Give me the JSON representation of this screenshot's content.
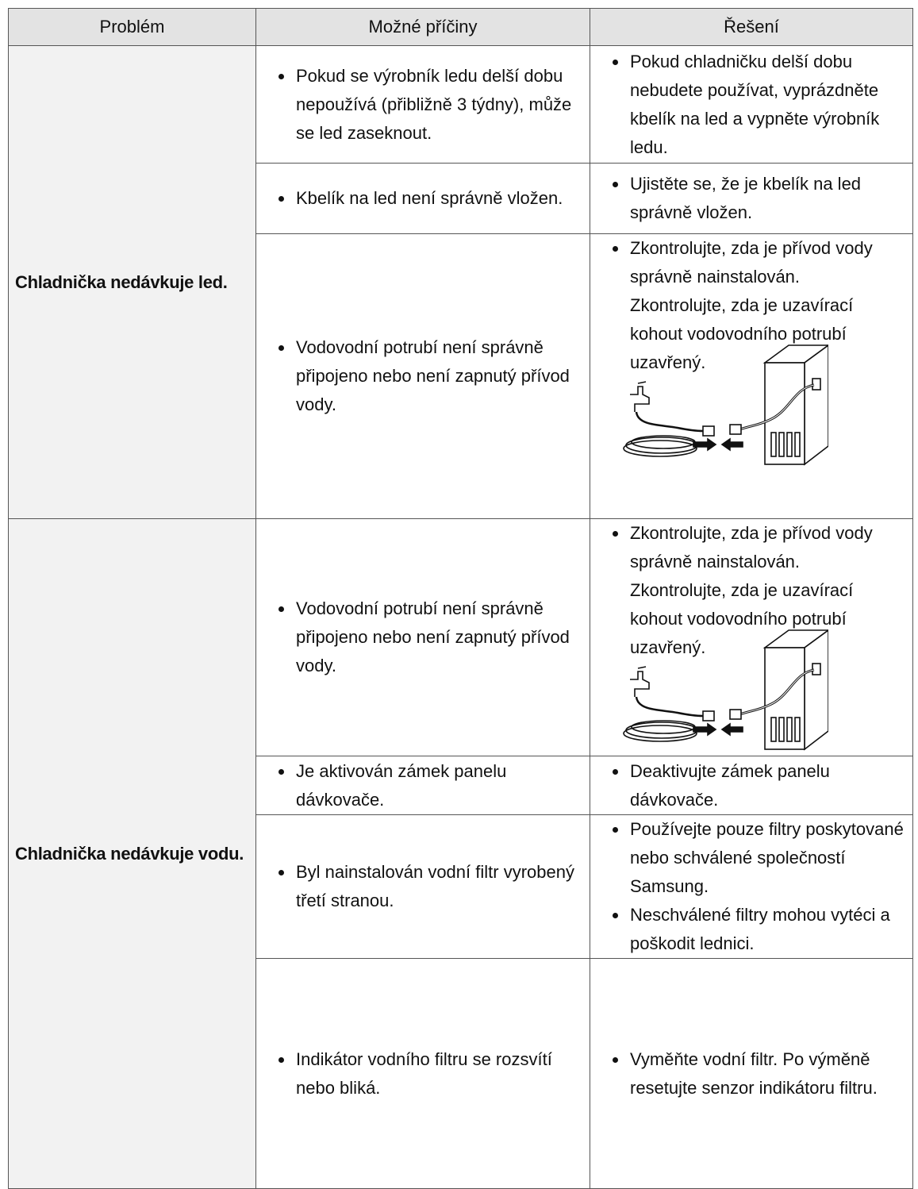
{
  "table": {
    "headers": [
      "Problém",
      "Možné příčiny",
      "Řešení"
    ],
    "groups": [
      {
        "problem": "Chladnička nedávkuje led.",
        "rows": [
          {
            "causes": [
              "Pokud se výrobník ledu delší dobu nepoužívá (přibližně 3 týdny), může se led zaseknout."
            ],
            "solutions": [
              [
                "Pokud chladničku delší dobu nebudete používat, vyprázdněte kbelík na led a vypněte výrobník ledu."
              ]
            ]
          },
          {
            "causes": [
              "Kbelík na led není správně vložen."
            ],
            "solutions": [
              [
                "Ujistěte se, že je kbelík na led správně vložen."
              ]
            ]
          },
          {
            "causes": [
              "Vodovodní potrubí není správně připojeno nebo není zapnutý přívod vody."
            ],
            "solutions": [
              [
                "Zkontrolujte, zda je přívod vody správně nainstalován.",
                "Zkontrolujte, zda je uzavírací kohout vodovodního potrubí uzavřený."
              ]
            ]
          }
        ]
      },
      {
        "problem": "Chladnička nedávkuje vodu.",
        "rows": [
          {
            "causes": [
              "Vodovodní potrubí není správně připojeno nebo není zapnutý přívod vody."
            ],
            "solutions": [
              [
                "Zkontrolujte, zda je přívod vody správně nainstalován.",
                "Zkontrolujte, zda je uzavírací kohout vodovodního potrubí uzavřený."
              ]
            ]
          },
          {
            "causes": [
              "Je aktivován zámek panelu dávkovače."
            ],
            "solutions": [
              [
                "Deaktivujte zámek panelu dávkovače."
              ]
            ]
          },
          {
            "causes": [
              "Byl nainstalován vodní filtr vyrobený třetí stranou."
            ],
            "solutions": [
              [
                "Používejte pouze filtry poskytované nebo schválené společností Samsung."
              ],
              [
                "Neschválené filtry mohou vytéci a poškodit lednici."
              ]
            ]
          },
          {
            "causes": [
              "Indikátor vodního filtru se rozsvítí nebo bliká."
            ],
            "solutions": [
              [
                "Vyměňte vodní filtr. Po výměně resetujte senzor indikátoru filtru."
              ]
            ]
          }
        ]
      }
    ]
  }
}
